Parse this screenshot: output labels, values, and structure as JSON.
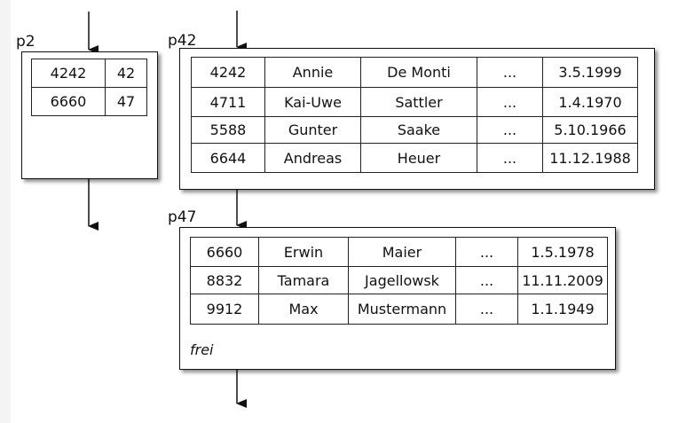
{
  "pages": {
    "p2": {
      "label": "p2",
      "rows": [
        [
          "4242",
          "42"
        ],
        [
          "6660",
          "47"
        ]
      ]
    },
    "p42": {
      "label": "p42",
      "rows": [
        [
          "4242",
          "Annie",
          "De Monti",
          "...",
          "3.5.1999"
        ],
        [
          "4711",
          "Kai-Uwe",
          "Sattler",
          "...",
          "1.4.1970"
        ],
        [
          "5588",
          "Gunter",
          "Saake",
          "...",
          "5.10.1966"
        ],
        [
          "6644",
          "Andreas",
          "Heuer",
          "...",
          "11.12.1988"
        ]
      ]
    },
    "p47": {
      "label": "p47",
      "rows": [
        [
          "6660",
          "Erwin",
          "Maier",
          "...",
          "1.5.1978"
        ],
        [
          "8832",
          "Tamara",
          "Jagellowsk",
          "...",
          "11.11.2009"
        ],
        [
          "9912",
          "Max",
          "Mustermann",
          "...",
          "1.1.1949"
        ]
      ],
      "free_label": "frei"
    }
  }
}
